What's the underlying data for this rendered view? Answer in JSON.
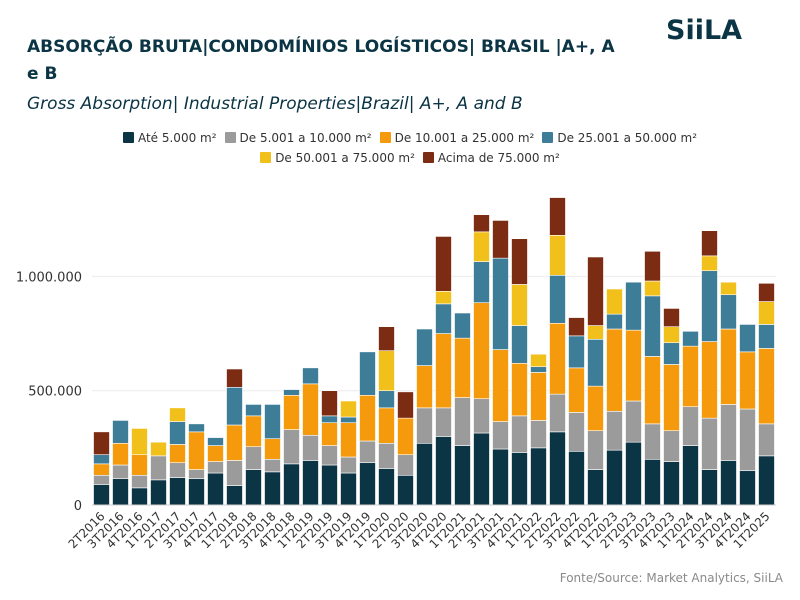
{
  "header": {
    "title": "ABSORÇÃO BRUTA|CONDOMÍNIOS LOGÍSTICOS| BRASIL |A+, A e B",
    "subtitle": "Gross Absorption| Industrial Properties|Brazil| A+, A and B",
    "logo_text": "SiiLA"
  },
  "source": "Fonte/Source: Market Analytics, SiiLA",
  "chart_data": {
    "type": "bar",
    "stacked": true,
    "ylim": [
      0,
      1400000
    ],
    "yticks": [
      0,
      500000,
      1000000
    ],
    "ytick_labels": [
      "0",
      "500.000",
      "1.000.000"
    ],
    "grid": true,
    "legend_position": "top",
    "categories": [
      "2T2016",
      "3T2016",
      "4T2016",
      "1T2017",
      "2T2017",
      "3T2017",
      "4T2017",
      "1T2018",
      "2T2018",
      "3T2018",
      "4T2018",
      "1T2019",
      "2T2019",
      "3T2019",
      "4T2019",
      "1T2020",
      "2T2020",
      "3T2020",
      "4T2020",
      "1T2021",
      "2T2021",
      "3T2021",
      "4T2021",
      "1T2022",
      "2T2022",
      "3T2022",
      "4T2022",
      "1T2023",
      "2T2023",
      "3T2023",
      "4T2023",
      "1T2024",
      "2T2024",
      "3T2024",
      "4T2024",
      "1T2025"
    ],
    "series": [
      {
        "name": "Até 5.000 m²",
        "color": "#0b3444",
        "values": [
          90000,
          115000,
          75000,
          110000,
          120000,
          115000,
          140000,
          85000,
          155000,
          145000,
          180000,
          195000,
          175000,
          140000,
          185000,
          160000,
          130000,
          270000,
          300000,
          260000,
          315000,
          245000,
          230000,
          250000,
          320000,
          235000,
          155000,
          240000,
          275000,
          200000,
          190000,
          260000,
          155000,
          195000,
          150000,
          215000
        ]
      },
      {
        "name": "De 5.001 a 10.000 m²",
        "color": "#9b9b9b",
        "values": [
          40000,
          60000,
          55000,
          105000,
          65000,
          40000,
          50000,
          110000,
          100000,
          55000,
          150000,
          110000,
          85000,
          70000,
          95000,
          110000,
          90000,
          155000,
          125000,
          210000,
          150000,
          120000,
          160000,
          120000,
          165000,
          170000,
          170000,
          170000,
          180000,
          155000,
          135000,
          170000,
          225000,
          245000,
          270000,
          140000
        ]
      },
      {
        "name": "De 10.001 a 25.000 m²",
        "color": "#f59a0c",
        "values": [
          50000,
          95000,
          90000,
          0,
          80000,
          165000,
          70000,
          155000,
          135000,
          90000,
          150000,
          225000,
          100000,
          150000,
          200000,
          155000,
          160000,
          185000,
          325000,
          260000,
          420000,
          315000,
          230000,
          210000,
          310000,
          195000,
          195000,
          360000,
          310000,
          295000,
          290000,
          265000,
          335000,
          330000,
          250000,
          330000
        ]
      },
      {
        "name": "De 25.001 a 50.000 m²",
        "color": "#3d7d97",
        "values": [
          40000,
          100000,
          0,
          0,
          100000,
          35000,
          35000,
          165000,
          50000,
          150000,
          25000,
          70000,
          30000,
          25000,
          190000,
          75000,
          0,
          160000,
          130000,
          110000,
          180000,
          400000,
          165000,
          25000,
          210000,
          140000,
          205000,
          65000,
          210000,
          265000,
          95000,
          65000,
          310000,
          150000,
          120000,
          105000
        ]
      },
      {
        "name": "De 50.001 a 75.000 m²",
        "color": "#f2c01b",
        "values": [
          0,
          0,
          115000,
          60000,
          60000,
          0,
          0,
          0,
          0,
          0,
          0,
          0,
          0,
          70000,
          0,
          175000,
          0,
          0,
          55000,
          0,
          130000,
          0,
          180000,
          55000,
          175000,
          0,
          60000,
          110000,
          0,
          65000,
          70000,
          0,
          65000,
          55000,
          0,
          100000
        ]
      },
      {
        "name": "Acima de 75.000 m²",
        "color": "#7b2c12",
        "values": [
          100000,
          0,
          0,
          0,
          0,
          0,
          0,
          80000,
          0,
          0,
          0,
          0,
          110000,
          0,
          0,
          105000,
          115000,
          0,
          240000,
          0,
          75000,
          165000,
          200000,
          0,
          165000,
          80000,
          300000,
          0,
          0,
          130000,
          80000,
          0,
          110000,
          0,
          0,
          80000
        ]
      }
    ]
  }
}
